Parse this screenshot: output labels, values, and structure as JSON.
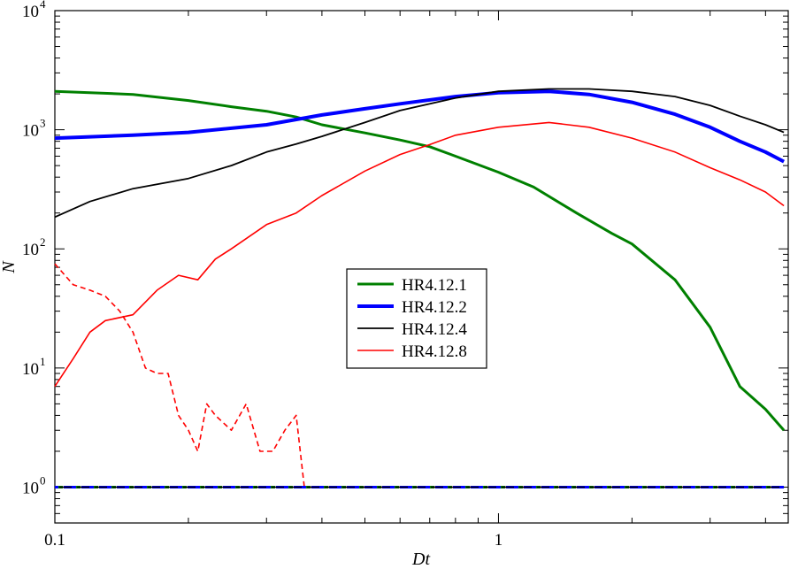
{
  "chart_data": {
    "type": "line",
    "title": "",
    "xlabel": "Dt",
    "ylabel": "N",
    "x_scale": "log",
    "y_scale": "log",
    "xlim": [
      0.1,
      4.5
    ],
    "ylim": [
      0.5,
      10000
    ],
    "grid": false,
    "legend_position": "center",
    "x_ticks": [
      {
        "value": 0.1,
        "label": "0.1"
      },
      {
        "value": 1,
        "label": "1"
      }
    ],
    "y_ticks": [
      {
        "value": 1,
        "base": "10",
        "exp": "0"
      },
      {
        "value": 10,
        "base": "10",
        "exp": "1"
      },
      {
        "value": 100,
        "base": "10",
        "exp": "2"
      },
      {
        "value": 1000,
        "base": "10",
        "exp": "3"
      },
      {
        "value": 10000,
        "base": "10",
        "exp": "4"
      }
    ],
    "series": [
      {
        "name": "HR4.12.1",
        "color": "#008000",
        "width": 3,
        "style": "solid",
        "x": [
          0.1,
          0.12,
          0.15,
          0.2,
          0.25,
          0.3,
          0.35,
          0.4,
          0.5,
          0.6,
          0.7,
          0.8,
          1.0,
          1.2,
          1.5,
          1.8,
          2.0,
          2.5,
          3.0,
          3.5,
          4.0,
          4.4
        ],
        "y": [
          2100,
          2050,
          1980,
          1760,
          1560,
          1430,
          1280,
          1100,
          940,
          820,
          720,
          600,
          440,
          330,
          200,
          135,
          110,
          55,
          22,
          7,
          4.5,
          3
        ]
      },
      {
        "name": "HR4.12.2",
        "color": "#0000ff",
        "width": 4,
        "style": "solid",
        "x": [
          0.1,
          0.15,
          0.2,
          0.3,
          0.4,
          0.5,
          0.6,
          0.8,
          1.0,
          1.3,
          1.6,
          2.0,
          2.5,
          3.0,
          3.5,
          4.0,
          4.4
        ],
        "y": [
          850,
          900,
          950,
          1100,
          1330,
          1500,
          1650,
          1900,
          2050,
          2100,
          1980,
          1700,
          1350,
          1050,
          800,
          650,
          540
        ]
      },
      {
        "name": "HR4.12.4",
        "color": "#000000",
        "width": 1.8,
        "style": "solid",
        "x": [
          0.1,
          0.12,
          0.15,
          0.2,
          0.25,
          0.3,
          0.35,
          0.4,
          0.5,
          0.6,
          0.8,
          1.0,
          1.3,
          1.6,
          2.0,
          2.5,
          3.0,
          3.5,
          4.0,
          4.4
        ],
        "y": [
          185,
          250,
          320,
          390,
          500,
          650,
          760,
          880,
          1150,
          1450,
          1850,
          2100,
          2200,
          2200,
          2100,
          1900,
          1600,
          1300,
          1100,
          950
        ]
      },
      {
        "name": "HR4.12.8",
        "color": "#ff0000",
        "width": 1.6,
        "style": "solid",
        "x": [
          0.1,
          0.11,
          0.12,
          0.13,
          0.15,
          0.17,
          0.19,
          0.21,
          0.23,
          0.25,
          0.3,
          0.35,
          0.4,
          0.5,
          0.6,
          0.7,
          0.8,
          1.0,
          1.3,
          1.6,
          2.0,
          2.5,
          3.0,
          3.5,
          4.0,
          4.4
        ],
        "y": [
          7,
          12,
          20,
          25,
          28,
          45,
          60,
          55,
          82,
          100,
          160,
          200,
          280,
          450,
          620,
          750,
          900,
          1050,
          1150,
          1050,
          850,
          650,
          480,
          380,
          300,
          230
        ]
      },
      {
        "color": "#ff0000",
        "width": 1.6,
        "style": "dashed",
        "x": [
          0.1,
          0.11,
          0.12,
          0.13,
          0.14,
          0.15,
          0.16,
          0.17,
          0.18,
          0.19,
          0.2,
          0.21,
          0.22,
          0.23,
          0.25,
          0.27,
          0.29,
          0.31,
          0.33,
          0.35,
          0.365,
          0.37,
          0.4,
          1.0,
          4.4
        ],
        "y": [
          75,
          50,
          45,
          40,
          30,
          20,
          10,
          9,
          9,
          4,
          3,
          2,
          5,
          4,
          3,
          5,
          2,
          2,
          3,
          4,
          1,
          1,
          1,
          1,
          1
        ]
      },
      {
        "color": "#008000",
        "width": 3,
        "style": "dashed",
        "x": [
          0.1,
          4.4
        ],
        "y": [
          1,
          1
        ]
      },
      {
        "color": "#0000ff",
        "width": 3,
        "style": "dashed",
        "x": [
          0.1,
          4.4
        ],
        "y": [
          1,
          1
        ]
      },
      {
        "color": "#000000",
        "width": 1.6,
        "style": "dashed",
        "x": [
          0.1,
          4.4
        ],
        "y": [
          1,
          1
        ]
      }
    ]
  }
}
